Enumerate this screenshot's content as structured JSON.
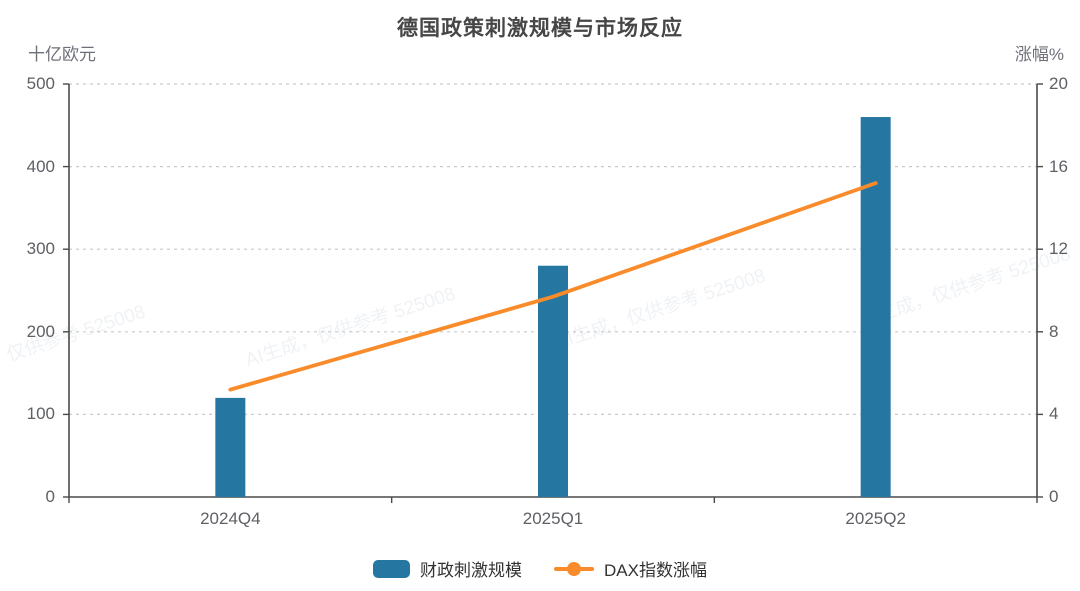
{
  "title": "德国政策刺激规模与市场反应",
  "watermark_text": "AI生成，仅供参考 525008",
  "chart_data": {
    "type": "bar",
    "subtype": "combo bar + line, dual y-axis",
    "title": "德国政策刺激规模与市场反应",
    "categories": [
      "2024Q4",
      "2025Q1",
      "2025Q2"
    ],
    "series": [
      {
        "name": "财政刺激规模",
        "type": "bar",
        "y_axis": "left",
        "values": [
          120,
          280,
          460
        ],
        "color": "#2577a2"
      },
      {
        "name": "DAX指数涨幅",
        "type": "line",
        "y_axis": "right",
        "values": [
          5.2,
          9.7,
          15.2
        ],
        "color": "#f98b2b"
      }
    ],
    "left_axis": {
      "name": "十亿欧元",
      "min": 0,
      "max": 500,
      "ticks": [
        0,
        100,
        200,
        300,
        400,
        500
      ]
    },
    "right_axis": {
      "name": "涨幅%",
      "min": 0,
      "max": 20,
      "ticks": [
        0,
        4,
        8,
        12,
        16,
        20
      ]
    },
    "legend": {
      "items": [
        "财政刺激规模",
        "DAX指数涨幅"
      ],
      "position": "bottom"
    },
    "grid": "dashed horizontal gridlines"
  }
}
